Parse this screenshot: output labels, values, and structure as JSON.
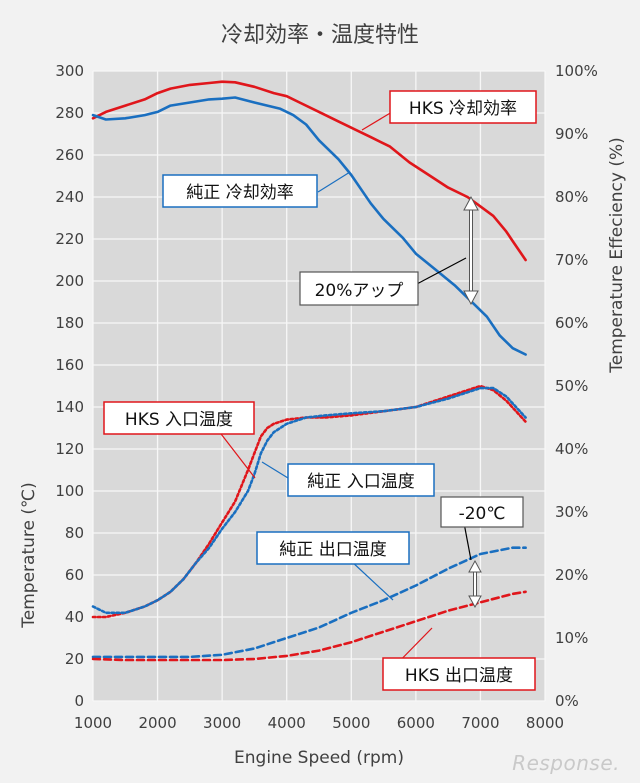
{
  "chart_data": {
    "type": "line",
    "title": "冷却効率・温度特性",
    "xlabel": "Engine Speed (rpm)",
    "ylabel": "Temperature (℃)",
    "y2label": "Temperature Effeciency (%)",
    "xlim": [
      1000,
      8000
    ],
    "ylim": [
      0,
      300
    ],
    "y2lim": [
      0,
      100
    ],
    "x_ticks": [
      "1000",
      "2000",
      "3000",
      "4000",
      "5000",
      "6000",
      "7000",
      "8000"
    ],
    "y_ticks": [
      "0",
      "20",
      "40",
      "60",
      "80",
      "100",
      "120",
      "140",
      "160",
      "180",
      "200",
      "220",
      "240",
      "260",
      "280",
      "300"
    ],
    "y2_ticks": [
      "0%",
      "10%",
      "20%",
      "30%",
      "40%",
      "50%",
      "60%",
      "70%",
      "80%",
      "90%",
      "100%"
    ],
    "grid": true,
    "series": [
      {
        "name": "HKS 冷却効率",
        "axis": "right",
        "color": "#e0161b",
        "dash": "solid",
        "x": [
          1000,
          1200,
          1500,
          1800,
          2000,
          2200,
          2500,
          2800,
          3000,
          3200,
          3500,
          3800,
          4000,
          4200,
          4500,
          4800,
          5000,
          5300,
          5600,
          5900,
          6200,
          6500,
          6800,
          7000,
          7200,
          7400,
          7500,
          7600,
          7700
        ],
        "y": [
          92.5,
          93.5,
          94.5,
          95.5,
          96.5,
          97.2,
          97.8,
          98.1,
          98.3,
          98.2,
          97.5,
          96.5,
          96,
          95,
          93.5,
          92,
          91,
          89.5,
          88,
          85.5,
          83.5,
          81.5,
          80,
          78.5,
          77,
          74.5,
          73,
          71.5,
          70
        ]
      },
      {
        "name": "純正 冷却効率",
        "axis": "right",
        "color": "#1a6fc0",
        "dash": "solid",
        "x": [
          1000,
          1200,
          1500,
          1800,
          2000,
          2200,
          2500,
          2800,
          3000,
          3200,
          3500,
          3700,
          3900,
          4100,
          4300,
          4500,
          4800,
          5000,
          5300,
          5500,
          5800,
          6000,
          6300,
          6600,
          6900,
          7100,
          7300,
          7500,
          7700
        ],
        "y": [
          93,
          92.3,
          92.5,
          93,
          93.5,
          94.5,
          95,
          95.5,
          95.6,
          95.8,
          95,
          94.5,
          94,
          93,
          91.5,
          89,
          86,
          83.5,
          79,
          76.5,
          73.5,
          71,
          68.5,
          66,
          63,
          61,
          58,
          56,
          55
        ]
      },
      {
        "name": "HKS 入口温度",
        "axis": "left",
        "color": "#e0161b",
        "dash": "dot",
        "x": [
          1000,
          1200,
          1500,
          1800,
          2000,
          2200,
          2400,
          2600,
          2800,
          3000,
          3200,
          3400,
          3500,
          3600,
          3700,
          3800,
          4000,
          4300,
          4600,
          5000,
          5500,
          6000,
          6500,
          6800,
          7000,
          7200,
          7400,
          7700
        ],
        "y": [
          40,
          40,
          42,
          45,
          48,
          52,
          58,
          66,
          75,
          85,
          95,
          110,
          118,
          126,
          130,
          132,
          134,
          135,
          135,
          136,
          138,
          140,
          145,
          148,
          150,
          148,
          143,
          133
        ]
      },
      {
        "name": "純正 入口温度",
        "axis": "left",
        "color": "#1a6fc0",
        "dash": "dot",
        "x": [
          1000,
          1200,
          1500,
          1800,
          2000,
          2200,
          2400,
          2600,
          2800,
          3000,
          3200,
          3400,
          3500,
          3600,
          3700,
          3800,
          4000,
          4300,
          4600,
          5000,
          5500,
          6000,
          6500,
          6800,
          7000,
          7200,
          7400,
          7700
        ],
        "y": [
          45,
          42,
          42,
          45,
          48,
          52,
          58,
          66,
          73,
          82,
          90,
          100,
          108,
          118,
          124,
          128,
          132,
          135,
          136,
          137,
          138,
          140,
          144,
          147,
          149,
          149,
          145,
          135
        ]
      },
      {
        "name": "純正 出口温度",
        "axis": "left",
        "color": "#1a6fc0",
        "dash": "dash",
        "x": [
          1000,
          1500,
          2000,
          2500,
          3000,
          3500,
          4000,
          4500,
          5000,
          5500,
          6000,
          6500,
          7000,
          7500,
          7700
        ],
        "y": [
          21,
          21,
          21,
          21,
          22,
          25,
          30,
          35,
          42,
          48,
          55,
          63,
          70,
          73,
          73
        ]
      },
      {
        "name": "HKS 出口温度",
        "axis": "left",
        "color": "#e0161b",
        "dash": "dash",
        "x": [
          1000,
          1500,
          2000,
          2500,
          3000,
          3500,
          4000,
          4500,
          5000,
          5500,
          6000,
          6500,
          7000,
          7500,
          7700
        ],
        "y": [
          20,
          19.5,
          19.5,
          19.5,
          19.5,
          20,
          21.5,
          24,
          28,
          33,
          38,
          43,
          47,
          51,
          52
        ]
      }
    ],
    "annotations": [
      {
        "text": "20%アップ",
        "between": [
          "HKS 冷却効率",
          "純正 冷却効率"
        ],
        "x": 6900
      },
      {
        "text": "-20℃",
        "between": [
          "純正 出口温度",
          "HKS 出口温度"
        ],
        "x": 6900
      }
    ]
  },
  "labels": {
    "hks_eff": "HKS 冷却効率",
    "std_eff": "純正 冷却効率",
    "hks_in": "HKS 入口温度",
    "std_in": "純正 入口温度",
    "std_out": "純正 出口温度",
    "hks_out": "HKS 出口温度",
    "up": "20%アップ",
    "down": "-20℃"
  },
  "watermark": "Response."
}
